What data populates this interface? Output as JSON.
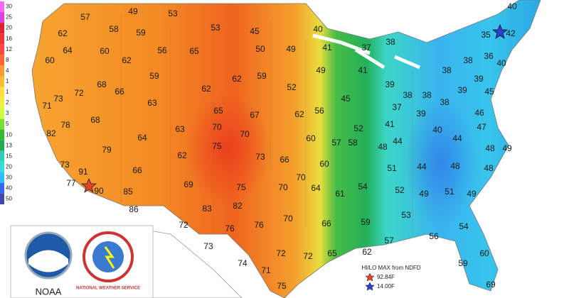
{
  "legend": {
    "labels": [
      30,
      25,
      20,
      16,
      12,
      8,
      4,
      1,
      1,
      2,
      3,
      5,
      10,
      13,
      15,
      20,
      30,
      40,
      50
    ]
  },
  "temperatures": [
    57,
    49,
    53,
    53,
    45,
    40,
    40,
    58,
    59,
    62,
    64,
    60,
    56,
    65,
    50,
    49,
    41,
    37,
    38,
    35,
    42,
    60,
    62,
    36,
    40,
    59,
    62,
    59,
    49,
    41,
    38,
    38,
    39,
    73,
    72,
    68,
    66,
    62,
    52,
    39,
    38,
    38,
    39,
    45,
    71,
    63,
    65,
    67,
    62,
    56,
    45,
    37,
    39,
    38,
    46,
    78,
    68,
    63,
    70,
    70,
    60,
    52,
    41,
    40,
    47,
    82,
    64,
    75,
    57,
    58,
    48,
    44,
    44,
    48,
    49,
    79,
    62,
    73,
    66,
    60,
    51,
    44,
    48,
    48,
    73,
    91,
    66,
    70,
    64,
    77,
    90,
    85,
    69,
    75,
    70,
    61,
    54,
    52,
    49,
    51,
    49,
    86,
    83,
    82,
    70,
    66,
    59,
    53,
    72,
    76,
    76,
    54,
    56,
    73,
    57,
    72,
    72,
    65,
    62,
    60,
    74,
    71,
    59,
    75,
    69
  ],
  "logo": {
    "agency": "NOAA",
    "service": "NATIONAL WEATHER SERVICE"
  },
  "key": {
    "title": "HI/LO MAX from NDFD",
    "max": "92.84F",
    "min": "14.00F"
  }
}
